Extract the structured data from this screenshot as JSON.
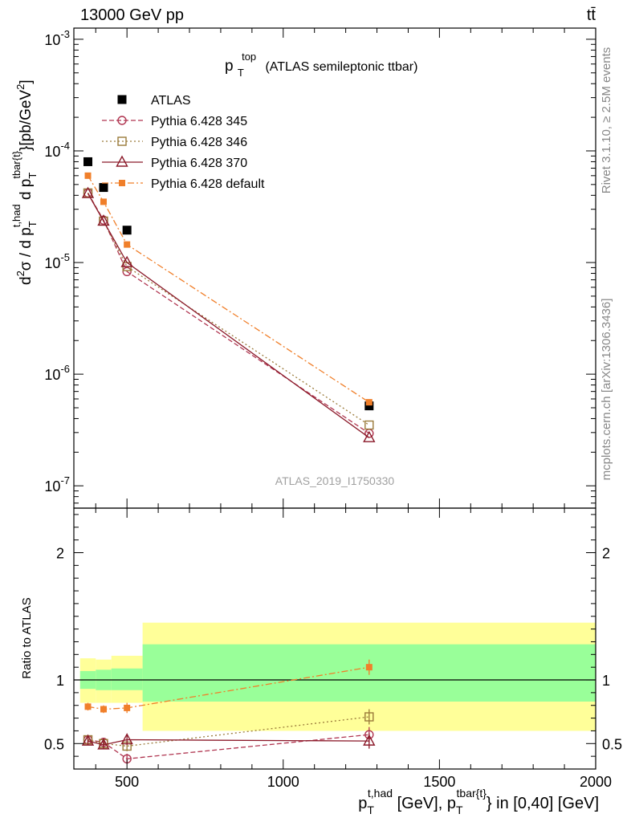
{
  "header": {
    "left": "13000 GeV pp",
    "right": "tt̄"
  },
  "side_text": {
    "rivet": "Rivet 3.1.10, ≥ 2.5M events",
    "mcplots": "mcplots.cern.ch [arXiv:1306.3436]"
  },
  "chart_data": [
    {
      "type": "scatter",
      "panel": "main",
      "title": "p_T^top (ATLAS semileptonic ttbar)",
      "title_base": "p",
      "title_sub": "T",
      "title_sup": "top",
      "title_rest": "(ATLAS semileptonic ttbar)",
      "analysis_label": "ATLAS_2019_I1750330",
      "ylabel": "d²σ / d p_T^{t,had} d p_T^{tbar{t}}[pb/GeV²]",
      "ylabel_parts": {
        "a": "d",
        "a_sup": "2",
        "b": "σ / d p",
        "b_sub": "T",
        "b_sup": "t,had",
        "c": " d p",
        "c_sub": "T",
        "c_sup": "tbar{t}",
        "d": "}[pb/GeV",
        "d_sup": "2",
        "e": "]"
      },
      "yscale": "log",
      "xlim": [
        330,
        2000
      ],
      "ylim_exp": [
        -7.2,
        -2.9
      ],
      "ytick_labels": [
        {
          "base": "10",
          "exp": "-3",
          "value": 0.001
        },
        {
          "base": "10",
          "exp": "-4",
          "value": 0.0001
        },
        {
          "base": "10",
          "exp": "-5",
          "value": 1e-05
        },
        {
          "base": "10",
          "exp": "-6",
          "value": 1e-06
        },
        {
          "base": "10",
          "exp": "-7",
          "value": 1e-07
        }
      ],
      "series": [
        {
          "name": "ATLAS",
          "key": "atlas",
          "color": "#000000",
          "marker": "square-filled",
          "x": [
            375,
            425,
            500,
            1275
          ],
          "y": [
            8e-05,
            4.7e-05,
            1.95e-05,
            5.2e-07
          ]
        },
        {
          "name": "Pythia 6.428 345",
          "key": "p345",
          "color": "#b03550",
          "marker": "circle-open",
          "dash": "6,3",
          "x": [
            375,
            425,
            500,
            1275
          ],
          "y": [
            4.2e-05,
            2.4e-05,
            8.3e-06,
            2.95e-07
          ]
        },
        {
          "name": "Pythia 6.428 346",
          "key": "p346",
          "color": "#9a7a3a",
          "marker": "square-open",
          "dash": "2,3",
          "x": [
            375,
            425,
            500,
            1275
          ],
          "y": [
            4.2e-05,
            2.35e-05,
            9.2e-06,
            3.5e-07
          ]
        },
        {
          "name": "Pythia 6.428 370",
          "key": "p370",
          "color": "#8b1a2a",
          "marker": "triangle-open",
          "dash": "",
          "x": [
            375,
            425,
            500,
            1275
          ],
          "y": [
            4.15e-05,
            2.35e-05,
            1e-05,
            2.7e-07
          ]
        },
        {
          "name": "Pythia 6.428 default",
          "key": "pdef",
          "color": "#f07f2a",
          "marker": "square-filled-small",
          "dash": "8,3,2,3",
          "x": [
            375,
            425,
            500,
            1275
          ],
          "y": [
            6e-05,
            3.5e-05,
            1.45e-05,
            5.6e-07
          ]
        }
      ]
    },
    {
      "type": "line",
      "panel": "ratio",
      "ylabel": "Ratio to ATLAS",
      "xlabel": "p_T^{t,had} [GeV], p_T^{tbar{t}} in [0,40] [GeV]",
      "xlabel_parts": {
        "a": "p",
        "a_sub": "T",
        "a_sup": "t,had",
        "b": " [GeV], p",
        "b_sub": "T",
        "b_sup": "tbar{t}",
        "c": "} in [0,40] [GeV]"
      },
      "xlim": [
        330,
        2000
      ],
      "ylim": [
        0.3,
        2.35
      ],
      "xticks": [
        500,
        1000,
        1500,
        2000
      ],
      "xtick_labels": [
        "500",
        "1000",
        "1500",
        "2000"
      ],
      "yticks": [
        0.5,
        1,
        2
      ],
      "ytick_labels": [
        "0.5",
        "1",
        "2"
      ],
      "bands": [
        {
          "x0": 350,
          "x1": 400,
          "yellow": [
            0.82,
            1.17
          ],
          "green": [
            0.93,
            1.07
          ]
        },
        {
          "x0": 400,
          "x1": 450,
          "yellow": [
            0.82,
            1.16
          ],
          "green": [
            0.92,
            1.08
          ]
        },
        {
          "x0": 450,
          "x1": 550,
          "yellow": [
            0.82,
            1.19
          ],
          "green": [
            0.92,
            1.09
          ]
        },
        {
          "x0": 550,
          "x1": 2000,
          "yellow": [
            0.6,
            1.45
          ],
          "green": [
            0.83,
            1.28
          ]
        }
      ],
      "series": [
        {
          "name": "Pythia 6.428 345",
          "key": "p345",
          "color": "#b03550",
          "marker": "circle-open",
          "dash": "6,3",
          "x": [
            375,
            425,
            500,
            1275
          ],
          "y": [
            0.53,
            0.51,
            0.38,
            0.57
          ],
          "err": [
            0.03,
            0.03,
            0.04,
            0.06
          ]
        },
        {
          "name": "Pythia 6.428 346",
          "key": "p346",
          "color": "#9a7a3a",
          "marker": "square-open",
          "dash": "2,3",
          "x": [
            375,
            425,
            500,
            1275
          ],
          "y": [
            0.53,
            0.5,
            0.48,
            0.71
          ],
          "err": [
            0.03,
            0.03,
            0.04,
            0.06
          ]
        },
        {
          "name": "Pythia 6.428 370",
          "key": "p370",
          "color": "#8b1a2a",
          "marker": "triangle-open",
          "dash": "",
          "x": [
            375,
            425,
            500,
            1275
          ],
          "y": [
            0.52,
            0.49,
            0.53,
            0.52
          ],
          "err": [
            0.03,
            0.03,
            0.04,
            0.06
          ]
        },
        {
          "name": "Pythia 6.428 default",
          "key": "pdef",
          "color": "#f07f2a",
          "marker": "square-filled-small",
          "dash": "8,3,2,3",
          "x": [
            375,
            425,
            500,
            1275
          ],
          "y": [
            0.79,
            0.77,
            0.78,
            1.1
          ],
          "err": [
            0.03,
            0.03,
            0.04,
            0.06
          ]
        }
      ]
    }
  ]
}
